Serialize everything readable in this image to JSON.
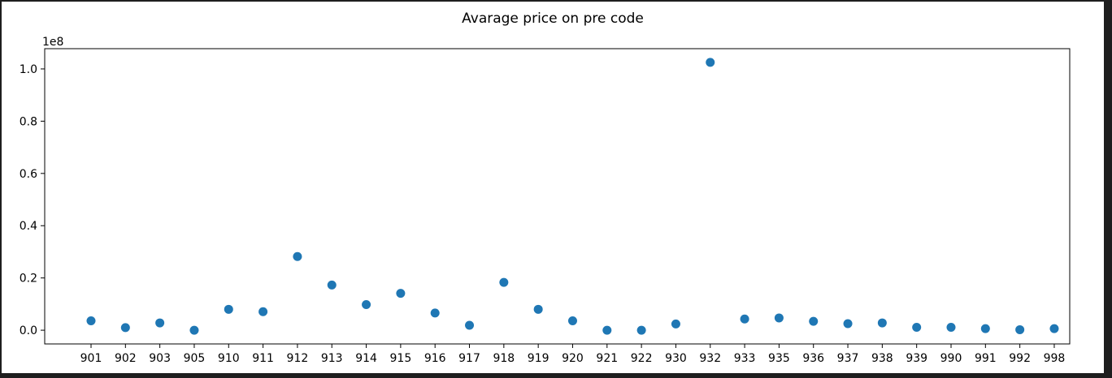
{
  "chart_data": {
    "type": "scatter",
    "title": "Avarage price on pre code",
    "xlabel": "",
    "ylabel": "",
    "x": [
      "901",
      "902",
      "903",
      "905",
      "910",
      "911",
      "912",
      "913",
      "914",
      "915",
      "916",
      "917",
      "918",
      "919",
      "920",
      "921",
      "922",
      "930",
      "932",
      "933",
      "935",
      "936",
      "937",
      "938",
      "939",
      "990",
      "991",
      "992",
      "998"
    ],
    "y": [
      0.036,
      0.01,
      0.028,
      0.0,
      0.08,
      0.071,
      0.282,
      0.173,
      0.098,
      0.141,
      0.066,
      0.019,
      0.183,
      0.08,
      0.036,
      0.0,
      0.0,
      0.024,
      1.025,
      0.043,
      0.047,
      0.034,
      0.025,
      0.028,
      0.011,
      0.011,
      0.006,
      0.002,
      0.006
    ],
    "y_multiplier_label": "1e8",
    "y_ticks": [
      0.0,
      0.2,
      0.4,
      0.6,
      0.8,
      1.0
    ],
    "y_tick_labels": [
      "0.0",
      "0.2",
      "0.4",
      "0.6",
      "0.8",
      "1.0"
    ],
    "ylim": [
      -0.0525,
      1.0775
    ],
    "grid": false,
    "legend": "none",
    "marker_color": "#1f77b4"
  }
}
